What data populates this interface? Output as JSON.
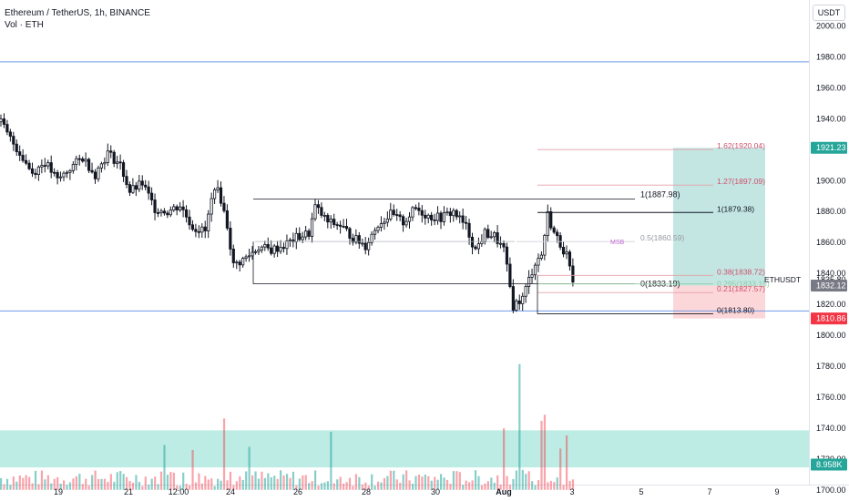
{
  "header": {
    "symbol": "Ethereum / TetherUS, 1h, BINANCE",
    "volume_label": "Vol · ETH",
    "currency_button": "USDT"
  },
  "colors": {
    "up_candle": "#131722",
    "down_candle": "#131722",
    "fib_red": "#e5a0a8",
    "fib_text_red": "#d0516b",
    "fib_text_green": "#8fcca0",
    "fib_grey": "#9598a1",
    "msb_color": "#c167d6",
    "support_line": "#6f9be6",
    "profit_zone": "rgba(38,166,154,0.28)",
    "loss_zone": "rgba(242,54,69,0.20)",
    "volume_band": "rgba(38,191,164,0.30)",
    "badge_green": "#26a69a",
    "badge_red": "#f23645",
    "badge_grey": "#787b86"
  },
  "chart_data": {
    "type": "candlestick",
    "y_axis": {
      "range": [
        1700,
        2008
      ],
      "ticks": [
        2000,
        1980,
        1960,
        1940,
        1920,
        1900,
        1880,
        1860,
        1840,
        1820,
        1800,
        1780,
        1760,
        1740,
        1720,
        1700
      ]
    },
    "x_axis": {
      "ticks": [
        "19",
        "21",
        "12:00",
        "24",
        "26",
        "28",
        "30",
        "Aug",
        "3",
        "5",
        "7",
        "9"
      ]
    },
    "price_path": [
      [
        0,
        1938
      ],
      [
        2,
        1930
      ],
      [
        6,
        1918
      ],
      [
        10,
        1905
      ],
      [
        14,
        1912
      ],
      [
        18,
        1900
      ],
      [
        22,
        1908
      ],
      [
        26,
        1915
      ],
      [
        30,
        1904
      ],
      [
        34,
        1918
      ],
      [
        38,
        1910
      ],
      [
        41,
        1893
      ],
      [
        45,
        1898
      ],
      [
        49,
        1882
      ],
      [
        53,
        1880
      ],
      [
        57,
        1884
      ],
      [
        61,
        1870
      ],
      [
        65,
        1867
      ],
      [
        68,
        1897
      ],
      [
        70,
        1888
      ],
      [
        72,
        1871
      ],
      [
        74,
        1845
      ],
      [
        78,
        1850
      ],
      [
        82,
        1857
      ],
      [
        86,
        1855
      ],
      [
        90,
        1858
      ],
      [
        94,
        1863
      ],
      [
        98,
        1866
      ],
      [
        100,
        1883
      ],
      [
        104,
        1873
      ],
      [
        108,
        1871
      ],
      [
        112,
        1863
      ],
      [
        116,
        1858
      ],
      [
        120,
        1872
      ],
      [
        124,
        1878
      ],
      [
        128,
        1873
      ],
      [
        132,
        1882
      ],
      [
        136,
        1877
      ],
      [
        140,
        1876
      ],
      [
        144,
        1880
      ],
      [
        148,
        1870
      ],
      [
        151,
        1855
      ],
      [
        154,
        1866
      ],
      [
        157,
        1864
      ],
      [
        160,
        1855
      ],
      [
        163,
        1819
      ],
      [
        166,
        1824
      ],
      [
        168,
        1836
      ],
      [
        170,
        1847
      ],
      [
        172,
        1852
      ],
      [
        174,
        1878
      ],
      [
        176,
        1866
      ],
      [
        178,
        1859
      ],
      [
        180,
        1852
      ],
      [
        182,
        1832
      ]
    ],
    "price_line": {
      "label": "ETHUSDT",
      "value": 1835.8
    },
    "badges": [
      {
        "text": "1921.23",
        "kind": "green"
      },
      {
        "text": "1832.12",
        "kind": "grey"
      },
      {
        "text": "1810.86",
        "kind": "red"
      },
      {
        "text": "8.958K",
        "kind": "green"
      }
    ],
    "fib_levels": [
      {
        "label": "1.62(1920.04)",
        "value": 1920.04,
        "color": "red"
      },
      {
        "label": "1.27(1897.09)",
        "value": 1897.09,
        "color": "red"
      },
      {
        "label": "1(1879.38)",
        "value": 1879.38,
        "color": "dark"
      },
      {
        "label": "0.5(1860.59)",
        "value": 1860.59,
        "color": "grey"
      },
      {
        "label": "0.38(1838.72)",
        "value": 1838.72,
        "color": "red"
      },
      {
        "label": "0.295(1833.15)",
        "value": 1833.15,
        "color": "green"
      },
      {
        "label": "0.21(1827.57)",
        "value": 1827.57,
        "color": "red"
      },
      {
        "label": "0(1813.80)",
        "value": 1813.8,
        "color": "dark"
      }
    ],
    "range_levels": [
      {
        "label": "1(1887.98)",
        "value": 1887.98
      },
      {
        "label": "0(1833.19)",
        "value": 1833.19
      }
    ],
    "annotations": [
      {
        "text": "MSB",
        "value": 1860.59
      }
    ],
    "support_lines": [
      1976.8,
      1815.7
    ],
    "volume_spike_bars": [
      52,
      61,
      71,
      79,
      105,
      160,
      165,
      172,
      173,
      178,
      180
    ]
  }
}
